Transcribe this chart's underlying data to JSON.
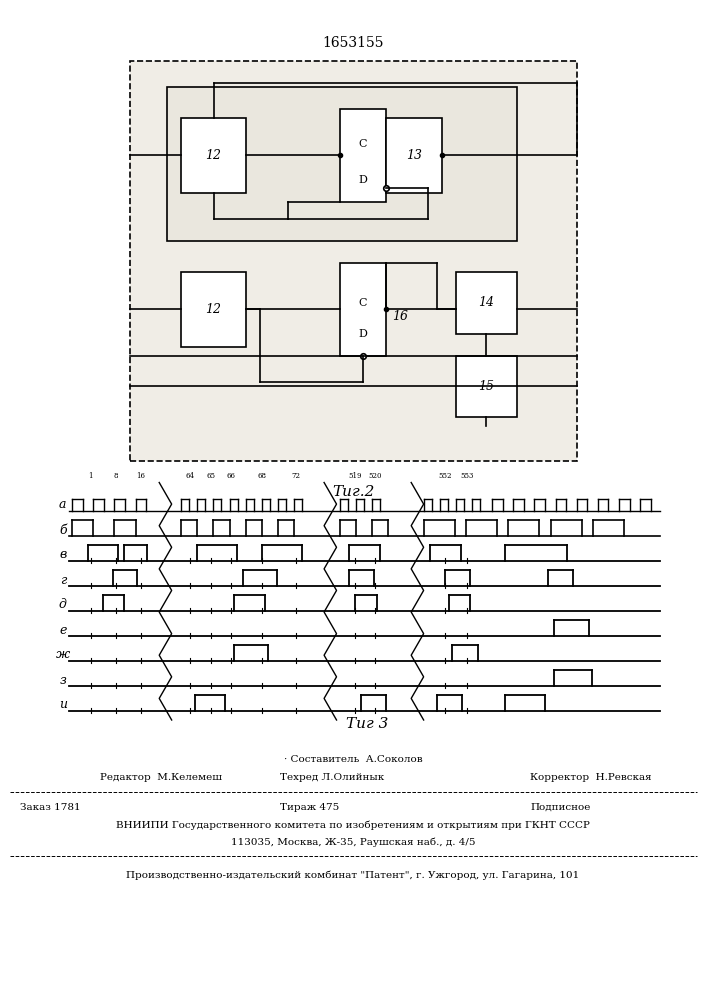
{
  "title": "1653155",
  "fig2_label": "Τиг.2",
  "fig3_label": "Τиг 3",
  "signal_labels": [
    "а",
    "б",
    "в",
    "г",
    "д",
    "е",
    "ж",
    "з",
    "и"
  ],
  "tick_labels": [
    "1",
    "8",
    "16",
    "64",
    "65",
    "66",
    "68",
    "72",
    "519",
    "520",
    "552",
    "553"
  ],
  "footer_line1": "· Составитель  А.Соколов",
  "footer_line2_left": "Редактор  М.Келемеш",
  "footer_line2_mid": "Техред Л.Олийнык",
  "footer_line2_right": "Корректор  Н.Ревская",
  "footer_line3_left": "Заказ 1781",
  "footer_line3_mid": "Тираж 475",
  "footer_line3_right": "Подписное",
  "footer_line4": "ВНИИПИ Государственного комитета по изобретениям и открытиям при ГКНТ СССР",
  "footer_line5": "113035, Москва, Ж-35, Раушская наб., д. 4/5",
  "footer_line6": "Производственно-издательский комбинат \"Патент\", г. Ужгород, ул. Гагарина, 101"
}
